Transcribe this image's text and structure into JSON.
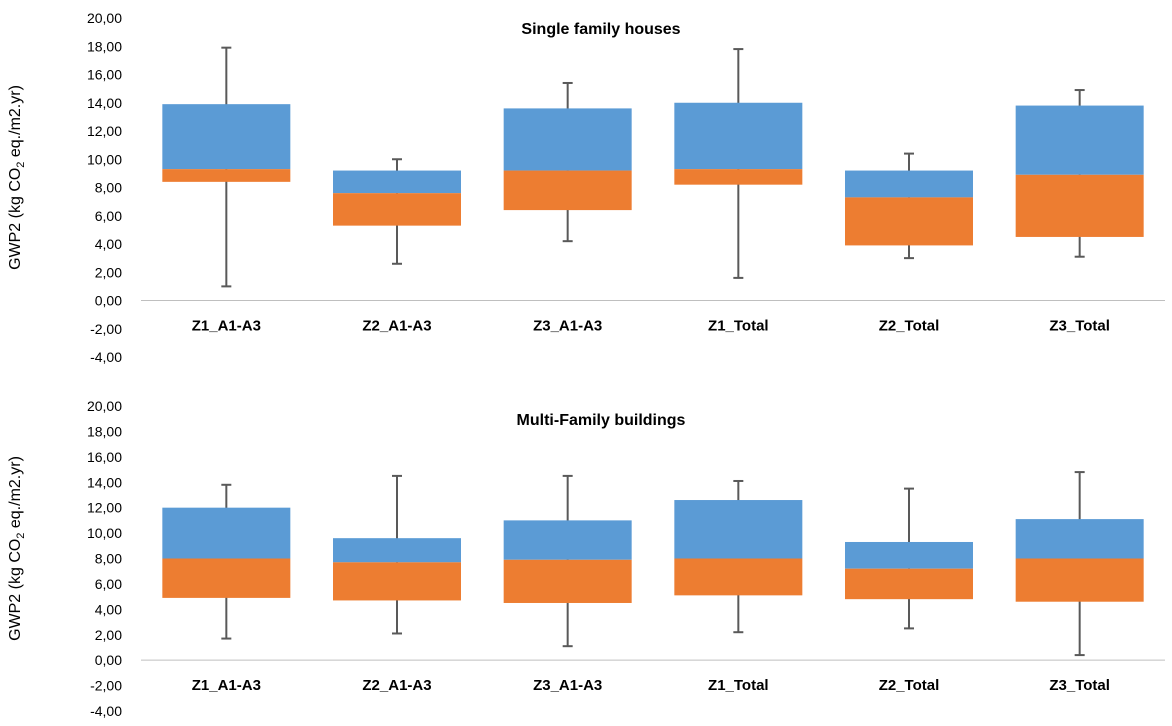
{
  "colors": {
    "q_lower": "#ED7D31",
    "q_upper": "#5B9BD5",
    "whisker": "#595959",
    "axis": "#BFBFBF",
    "text": "#000000"
  },
  "chart_data": [
    {
      "type": "box",
      "title": "Single family houses",
      "ylabel_main": "GWP2 (kg CO",
      "ylabel_sub": "2",
      "ylabel_tail": " eq./m2.yr)",
      "ylim": [
        -4,
        20
      ],
      "ytick_step": 2,
      "yticks": [
        "-4,00",
        "-2,00",
        "0,00",
        "2,00",
        "4,00",
        "6,00",
        "8,00",
        "10,00",
        "12,00",
        "14,00",
        "16,00",
        "18,00",
        "20,00"
      ],
      "categories": [
        "Z1_A1-A3",
        "Z2_A1-A3",
        "Z3_A1-A3",
        "Z1_Total",
        "Z2_Total",
        "Z3_Total"
      ],
      "boxes": [
        {
          "min": 1.0,
          "q1": 8.4,
          "median": 9.3,
          "q3": 13.9,
          "max": 17.9
        },
        {
          "min": 2.6,
          "q1": 5.3,
          "median": 7.6,
          "q3": 9.2,
          "max": 10.0
        },
        {
          "min": 4.2,
          "q1": 6.4,
          "median": 9.2,
          "q3": 13.6,
          "max": 15.4
        },
        {
          "min": 1.6,
          "q1": 8.2,
          "median": 9.3,
          "q3": 14.0,
          "max": 17.8
        },
        {
          "min": 3.0,
          "q1": 3.9,
          "median": 7.3,
          "q3": 9.2,
          "max": 10.4
        },
        {
          "min": 3.1,
          "q1": 4.5,
          "median": 8.9,
          "q3": 13.8,
          "max": 14.9
        }
      ]
    },
    {
      "type": "box",
      "title": "Multi-Family buildings",
      "ylabel_main": "GWP2 (kg CO",
      "ylabel_sub": "2",
      "ylabel_tail": " eq./m2.yr)",
      "ylim": [
        -4,
        20
      ],
      "ytick_step": 2,
      "yticks": [
        "-4,00",
        "-2,00",
        "0,00",
        "2,00",
        "4,00",
        "6,00",
        "8,00",
        "10,00",
        "12,00",
        "14,00",
        "16,00",
        "18,00",
        "20,00"
      ],
      "categories": [
        "Z1_A1-A3",
        "Z2_A1-A3",
        "Z3_A1-A3",
        "Z1_Total",
        "Z2_Total",
        "Z3_Total"
      ],
      "boxes": [
        {
          "min": 1.7,
          "q1": 4.9,
          "median": 8.0,
          "q3": 12.0,
          "max": 13.8
        },
        {
          "min": 2.1,
          "q1": 4.7,
          "median": 7.7,
          "q3": 9.6,
          "max": 14.5
        },
        {
          "min": 1.1,
          "q1": 4.5,
          "median": 7.9,
          "q3": 11.0,
          "max": 14.5
        },
        {
          "min": 2.2,
          "q1": 5.1,
          "median": 8.0,
          "q3": 12.6,
          "max": 14.1
        },
        {
          "min": 2.5,
          "q1": 4.8,
          "median": 7.2,
          "q3": 9.3,
          "max": 13.5
        },
        {
          "min": 0.4,
          "q1": 4.6,
          "median": 8.0,
          "q3": 11.1,
          "max": 14.8
        }
      ]
    }
  ]
}
